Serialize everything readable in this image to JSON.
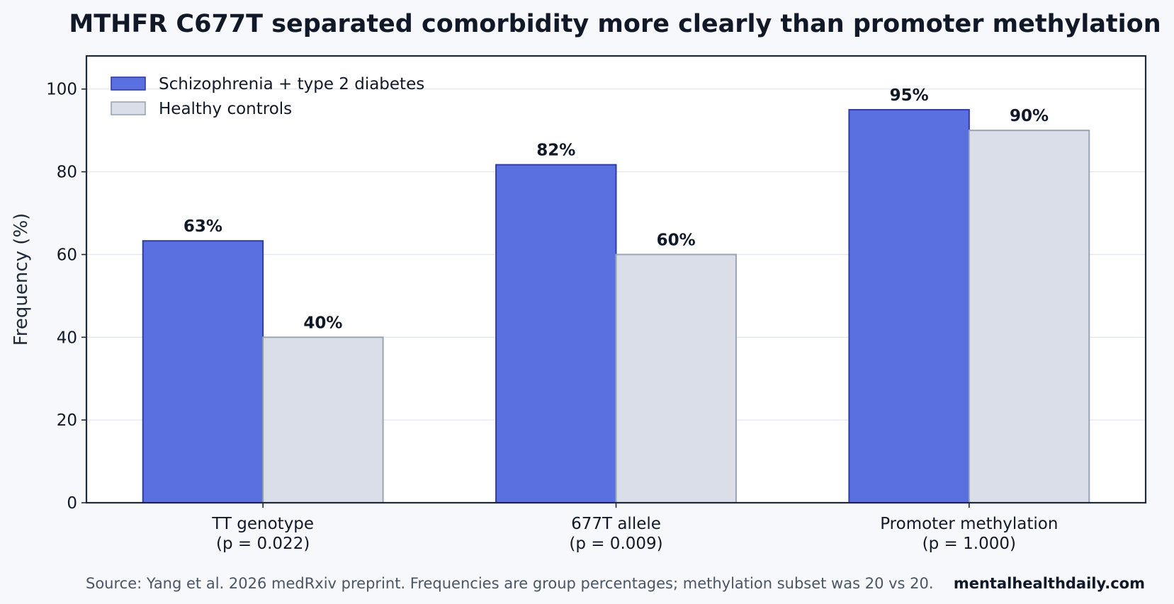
{
  "chart_data": {
    "type": "bar",
    "title": "MTHFR C677T separated comorbidity more clearly than promoter methylation",
    "ylabel": "Frequency (%)",
    "xlabel": "",
    "ylim": [
      0,
      108
    ],
    "yticks": [
      0,
      20,
      40,
      60,
      80,
      100
    ],
    "grid": "horizontal",
    "legend_position": "top-left",
    "categories": [
      [
        "TT genotype",
        "(p = 0.022)"
      ],
      [
        "677T allele",
        "(p = 0.009)"
      ],
      [
        "Promoter methylation",
        "(p = 1.000)"
      ]
    ],
    "series": [
      {
        "name": "Schizophrenia + type 2 diabetes",
        "values": [
          63.3,
          81.7,
          95
        ],
        "labels": [
          "63%",
          "82%",
          "95%"
        ],
        "fill": "#5a6fe0",
        "stroke": "#2f3ea6"
      },
      {
        "name": "Healthy controls",
        "values": [
          40,
          60,
          90
        ],
        "labels": [
          "40%",
          "60%",
          "90%"
        ],
        "fill": "#d9dee8",
        "stroke": "#9aa5b4"
      }
    ]
  },
  "footer": {
    "source": "Source: Yang et al. 2026 medRxiv preprint. Frequencies are group percentages; methylation subset was 20 vs 20.",
    "brand": "mentalhealthdaily.com"
  }
}
